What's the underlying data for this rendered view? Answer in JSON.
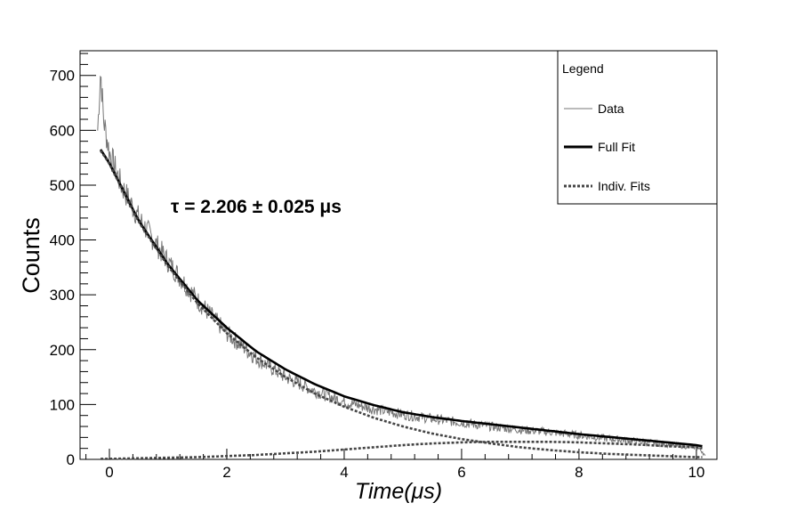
{
  "chart_data": {
    "type": "line",
    "xlabel": "Time(μs)",
    "ylabel": "Counts",
    "xlim": [
      -0.5,
      10.35
    ],
    "ylim": [
      0,
      745
    ],
    "x_ticks": [
      0,
      2,
      4,
      6,
      8,
      10
    ],
    "y_ticks": [
      0,
      100,
      200,
      300,
      400,
      500,
      600,
      700
    ],
    "x_tick_labels": [
      "0",
      "2",
      "4",
      "6",
      "8",
      "10"
    ],
    "y_tick_labels": [
      "0",
      "100",
      "200",
      "300",
      "400",
      "500",
      "600",
      "700"
    ],
    "annotation": "τ = 2.206 ± 0.025  μs",
    "grid": false,
    "legend": {
      "title": "Legend",
      "position": "top-right",
      "entries": [
        {
          "label": "Data",
          "style": "thin-solid",
          "color": "#777777"
        },
        {
          "label": "Full Fit",
          "style": "thick-solid",
          "color": "#000000"
        },
        {
          "label": "Indiv. Fits",
          "style": "dotted",
          "color": "#444444"
        }
      ]
    },
    "series": [
      {
        "name": "Data",
        "color": "#777777",
        "x": [
          -0.2,
          -0.15,
          -0.1,
          0.0,
          0.2,
          0.5,
          1.0,
          1.5,
          2.0,
          2.5,
          3.0,
          3.5,
          4.0,
          4.5,
          5.0,
          5.5,
          6.0,
          6.5,
          7.0,
          7.5,
          8.0,
          8.5,
          9.0,
          9.5,
          10.0,
          10.1,
          10.15
        ],
        "values": [
          600,
          710,
          620,
          560,
          500,
          440,
          360,
          290,
          230,
          185,
          150,
          125,
          105,
          92,
          82,
          74,
          67,
          60,
          54,
          50,
          44,
          38,
          33,
          28,
          22,
          15,
          5
        ]
      },
      {
        "name": "Full Fit",
        "color": "#000000",
        "x": [
          -0.15,
          0.0,
          0.5,
          1.0,
          1.5,
          2.0,
          2.5,
          3.0,
          3.5,
          4.0,
          4.5,
          5.0,
          5.5,
          6.0,
          6.5,
          7.0,
          7.5,
          8.0,
          8.5,
          9.0,
          9.5,
          10.0,
          10.1
        ],
        "values": [
          565,
          540,
          435,
          355,
          290,
          240,
          197,
          164,
          137,
          115,
          99,
          86,
          77,
          70,
          64,
          58,
          52,
          46,
          41,
          36,
          31,
          26,
          24
        ]
      },
      {
        "name": "Indiv. Fits",
        "color": "#444444",
        "x": [
          -0.15,
          0.0,
          0.5,
          1.0,
          1.5,
          2.0,
          2.5,
          3.0,
          3.5,
          4.0,
          4.5,
          5.0,
          5.5,
          6.0,
          6.5,
          7.0,
          7.5,
          8.0,
          8.5,
          9.0,
          9.5,
          10.0,
          10.1
        ],
        "values": [
          563,
          539,
          433,
          352,
          285,
          230,
          186,
          150,
          120,
          96,
          76,
          60,
          47,
          37,
          29,
          22,
          17,
          13,
          10,
          8,
          6,
          4,
          4
        ]
      },
      {
        "name": "Indiv. Fits",
        "color": "#444444",
        "x": [
          -0.15,
          0.0,
          0.5,
          1.0,
          1.5,
          2.0,
          2.5,
          3.0,
          3.5,
          4.0,
          4.5,
          5.0,
          5.5,
          6.0,
          6.5,
          7.0,
          7.5,
          8.0,
          8.5,
          9.0,
          9.5,
          10.0,
          10.1
        ],
        "values": [
          1,
          1,
          2,
          3,
          4,
          6,
          8,
          11,
          14,
          18,
          22,
          26,
          29,
          31,
          32,
          32,
          32,
          31,
          29,
          27,
          24,
          22,
          20
        ]
      }
    ]
  }
}
